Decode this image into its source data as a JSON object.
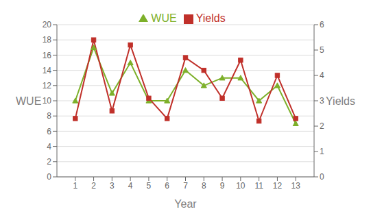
{
  "chart_data": {
    "type": "line",
    "xlabel": "Year",
    "ylabel": "WUE",
    "y2label": "Yields",
    "x": [
      1,
      2,
      3,
      4,
      5,
      6,
      7,
      8,
      9,
      10,
      11,
      12,
      13
    ],
    "xlim": [
      0,
      14
    ],
    "xticks": [
      1,
      2,
      3,
      4,
      5,
      6,
      7,
      8,
      9,
      10,
      11,
      12,
      13
    ],
    "ylim": [
      0,
      20
    ],
    "yticks": [
      0,
      2,
      4,
      6,
      8,
      10,
      12,
      14,
      16,
      18,
      20
    ],
    "y2lim": [
      0,
      6
    ],
    "y2ticks": [
      0,
      1,
      2,
      3,
      4,
      5,
      6
    ],
    "grid": true,
    "legend": "top",
    "series": [
      {
        "name": "WUE",
        "color": "#7DB02A",
        "marker": "triangle",
        "values": [
          10,
          17,
          11,
          15,
          10,
          10,
          14,
          12,
          13,
          13,
          10,
          12,
          7
        ]
      },
      {
        "name": "Yields",
        "color": "#C0302A",
        "marker": "square",
        "axis": "y2",
        "values": [
          2.3,
          5.4,
          2.6,
          5.2,
          3.1,
          2.3,
          4.7,
          4.2,
          3.1,
          4.6,
          2.2,
          4.0,
          2.3
        ]
      }
    ]
  }
}
